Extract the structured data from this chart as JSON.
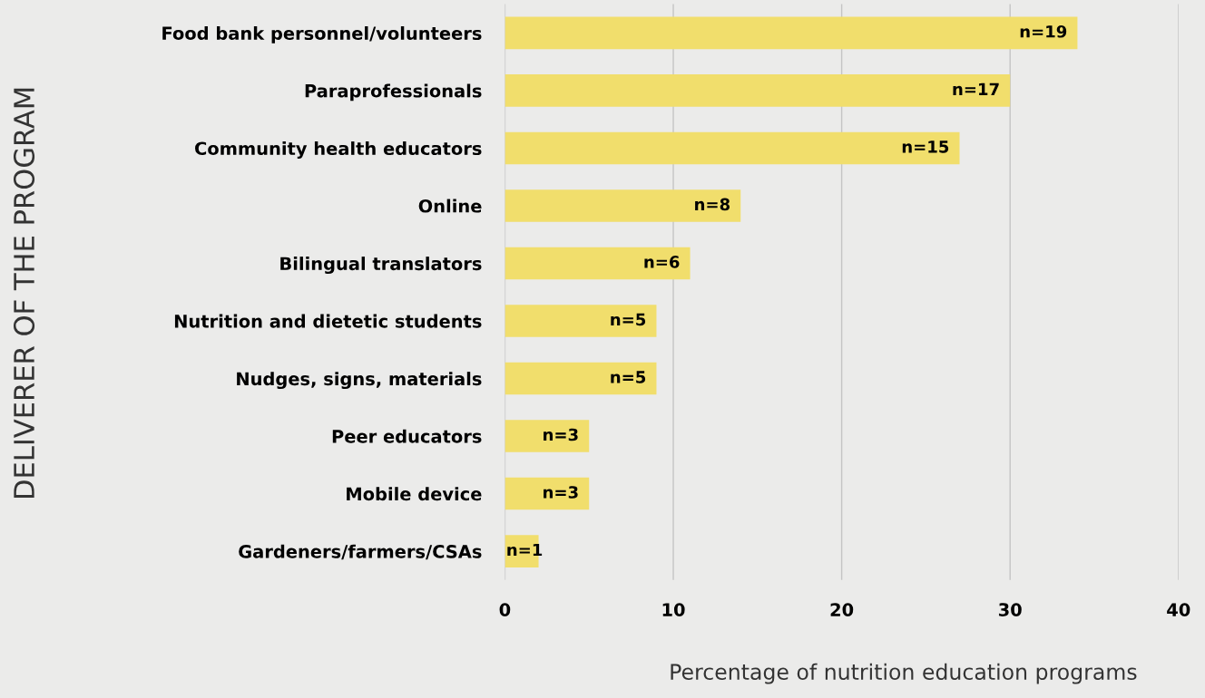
{
  "chart_data": {
    "type": "bar",
    "orientation": "horizontal",
    "categories": [
      "Food bank personnel/volunteers",
      "Paraprofessionals",
      "Community health educators",
      "Online",
      "Bilingual translators",
      "Nutrition and dietetic students",
      "Nudges, signs, materials",
      "Peer educators",
      "Mobile device",
      "Gardeners/farmers/CSAs"
    ],
    "values": [
      34,
      30,
      27,
      14,
      11,
      9,
      9,
      5,
      5,
      2
    ],
    "color": "#f1de6c",
    "xlim": [
      0,
      40
    ],
    "xticks": [
      0,
      10,
      20,
      30,
      40
    ],
    "xlabel": "Percentage of nutrition education programs",
    "ylabel": "DELIVERER OF THE PROGRAM",
    "annotations": [
      {
        "text": "n=19",
        "x": 34,
        "y": "Food bank personnel/volunteers"
      },
      {
        "text": "n=17",
        "x": 30,
        "y": "Paraprofessionals"
      },
      {
        "text": "n=15",
        "x": 27,
        "y": "Community health educators"
      },
      {
        "text": "n=8",
        "x": 14,
        "y": "Online"
      },
      {
        "text": "n=6",
        "x": 11,
        "y": "Bilingual translators"
      },
      {
        "text": "n=5",
        "x": 9,
        "y": "Nutrition and dietetic students"
      },
      {
        "text": "n=5",
        "x": 9,
        "y": "Nudges, signs, materials"
      },
      {
        "text": "n=3",
        "x": 5,
        "y": "Peer educators"
      },
      {
        "text": "n=3",
        "x": 5,
        "y": "Mobile device"
      },
      {
        "text": "n=1",
        "x": 2,
        "y": "Gardeners/farmers/CSAs"
      }
    ],
    "grid": "x",
    "legend": false
  }
}
